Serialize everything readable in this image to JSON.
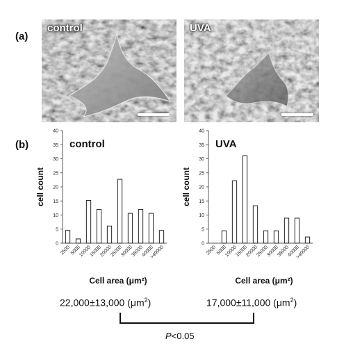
{
  "panel_a": {
    "letter": "(a)",
    "images": [
      {
        "label": "control"
      },
      {
        "label": "UVA"
      }
    ]
  },
  "panel_b": {
    "letter": "(b)"
  },
  "chart_data": [
    {
      "type": "bar",
      "title": "control",
      "xlabel": "Cell area (μm²)",
      "ylabel": "cell count",
      "ylim": [
        0,
        40
      ],
      "yticks": [
        0,
        5,
        10,
        15,
        20,
        25,
        30,
        35,
        40
      ],
      "categories": [
        "2500",
        "5000",
        "10000",
        "15000",
        "20000",
        "25000",
        "30000",
        "35000",
        "40000",
        ">40000"
      ],
      "values": [
        4.5,
        1.5,
        15.2,
        12,
        6.1,
        22.7,
        10.6,
        12,
        10.6,
        4.5
      ],
      "grid": false
    },
    {
      "type": "bar",
      "title": "UVA",
      "xlabel": "Cell area (μm²)",
      "ylabel": "cell count",
      "ylim": [
        0,
        40
      ],
      "yticks": [
        0,
        5,
        10,
        15,
        20,
        25,
        30,
        35,
        40
      ],
      "categories": [
        "2500",
        "5000",
        "10000",
        "15000",
        "20000",
        "25000",
        "30000",
        "35000",
        "40000",
        ">40000"
      ],
      "values": [
        0,
        4.4,
        22.2,
        31.1,
        13.3,
        4.4,
        4.4,
        8.9,
        8.9,
        2.2
      ],
      "grid": false
    }
  ],
  "stats": {
    "control_mean": "22,000±13,000 (μm",
    "uva_mean": "17,000±11,000 (μm",
    "unit_sup": "2",
    "unit_close": ")",
    "p_italic": "P",
    "p_rest": "<0.05"
  }
}
